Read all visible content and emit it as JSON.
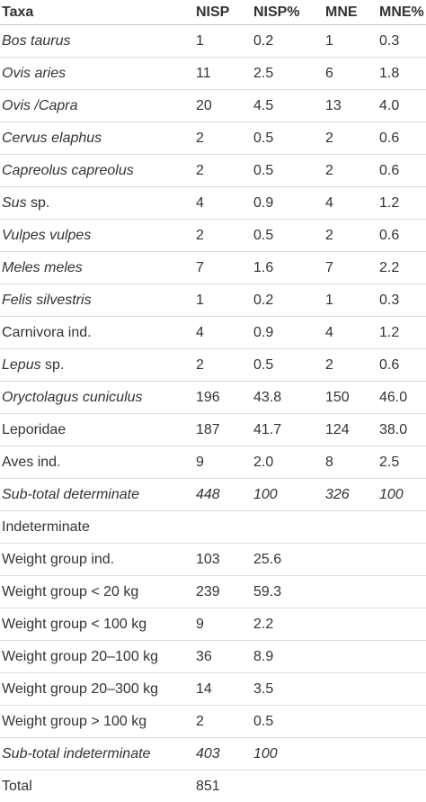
{
  "headers": [
    "Taxa",
    "NISP",
    "NISP%",
    "MNE",
    "MNE%"
  ],
  "rows": [
    {
      "taxon": "Bos taurus",
      "suffix": "",
      "italic": true,
      "nisp": "1",
      "nisp_pct": "0.2",
      "mne": "1",
      "mne_pct": "0.3"
    },
    {
      "taxon": "Ovis aries",
      "suffix": "",
      "italic": true,
      "nisp": "11",
      "nisp_pct": "2.5",
      "mne": "6",
      "mne_pct": "1.8"
    },
    {
      "taxon": "Ovis /Capra",
      "suffix": "",
      "italic": true,
      "nisp": "20",
      "nisp_pct": "4.5",
      "mne": "13",
      "mne_pct": "4.0"
    },
    {
      "taxon": "Cervus elaphus",
      "suffix": "",
      "italic": true,
      "nisp": "2",
      "nisp_pct": "0.5",
      "mne": "2",
      "mne_pct": "0.6"
    },
    {
      "taxon": "Capreolus capreolus",
      "suffix": "",
      "italic": true,
      "nisp": "2",
      "nisp_pct": "0.5",
      "mne": "2",
      "mne_pct": "0.6"
    },
    {
      "taxon": "Sus",
      "suffix": " sp.",
      "italic": true,
      "nisp": "4",
      "nisp_pct": "0.9",
      "mne": "4",
      "mne_pct": "1.2"
    },
    {
      "taxon": "Vulpes vulpes",
      "suffix": "",
      "italic": true,
      "nisp": "2",
      "nisp_pct": "0.5",
      "mne": "2",
      "mne_pct": "0.6"
    },
    {
      "taxon": "Meles meles",
      "suffix": "",
      "italic": true,
      "nisp": "7",
      "nisp_pct": "1.6",
      "mne": "7",
      "mne_pct": "2.2"
    },
    {
      "taxon": "Felis silvestris",
      "suffix": "",
      "italic": true,
      "nisp": "1",
      "nisp_pct": "0.2",
      "mne": "1",
      "mne_pct": "0.3"
    },
    {
      "taxon": "Carnivora ind.",
      "suffix": "",
      "italic": false,
      "nisp": "4",
      "nisp_pct": "0.9",
      "mne": "4",
      "mne_pct": "1.2"
    },
    {
      "taxon": "Lepus",
      "suffix": " sp.",
      "italic": true,
      "nisp": "2",
      "nisp_pct": "0.5",
      "mne": "2",
      "mne_pct": "0.6"
    },
    {
      "taxon": "Oryctolagus cuniculus",
      "suffix": "",
      "italic": true,
      "nisp": "196",
      "nisp_pct": "43.8",
      "mne": "150",
      "mne_pct": "46.0"
    },
    {
      "taxon": "Leporidae",
      "suffix": "",
      "italic": false,
      "nisp": "187",
      "nisp_pct": "41.7",
      "mne": "124",
      "mne_pct": "38.0"
    },
    {
      "taxon": "Aves ind.",
      "suffix": "",
      "italic": false,
      "nisp": "9",
      "nisp_pct": "2.0",
      "mne": "8",
      "mne_pct": "2.5"
    },
    {
      "taxon": "Sub-total determinate",
      "suffix": "",
      "italic": true,
      "all_italic": true,
      "nisp": "448",
      "nisp_pct": "100",
      "mne": "326",
      "mne_pct": "100"
    },
    {
      "taxon": "Indeterminate",
      "suffix": "",
      "italic": false,
      "nisp": "",
      "nisp_pct": "",
      "mne": "",
      "mne_pct": ""
    },
    {
      "taxon": "Weight group ind.",
      "suffix": "",
      "italic": false,
      "nisp": "103",
      "nisp_pct": "25.6",
      "mne": "",
      "mne_pct": ""
    },
    {
      "taxon": "Weight group < 20 kg",
      "suffix": "",
      "italic": false,
      "nisp": "239",
      "nisp_pct": "59.3",
      "mne": "",
      "mne_pct": ""
    },
    {
      "taxon": "Weight group < 100 kg",
      "suffix": "",
      "italic": false,
      "nisp": "9",
      "nisp_pct": "2.2",
      "mne": "",
      "mne_pct": ""
    },
    {
      "taxon": "Weight group 20–100 kg",
      "suffix": "",
      "italic": false,
      "nisp": "36",
      "nisp_pct": "8.9",
      "mne": "",
      "mne_pct": ""
    },
    {
      "taxon": "Weight group 20–300 kg",
      "suffix": "",
      "italic": false,
      "nisp": "14",
      "nisp_pct": "3.5",
      "mne": "",
      "mne_pct": ""
    },
    {
      "taxon": "Weight group > 100 kg",
      "suffix": "",
      "italic": false,
      "nisp": "2",
      "nisp_pct": "0.5",
      "mne": "",
      "mne_pct": ""
    },
    {
      "taxon": "Sub-total indeterminate",
      "suffix": "",
      "italic": true,
      "all_italic": true,
      "nisp": "403",
      "nisp_pct": "100",
      "mne": "",
      "mne_pct": ""
    },
    {
      "taxon": "Total",
      "suffix": "",
      "italic": false,
      "nisp": "851",
      "nisp_pct": "",
      "mne": "",
      "mne_pct": ""
    }
  ]
}
